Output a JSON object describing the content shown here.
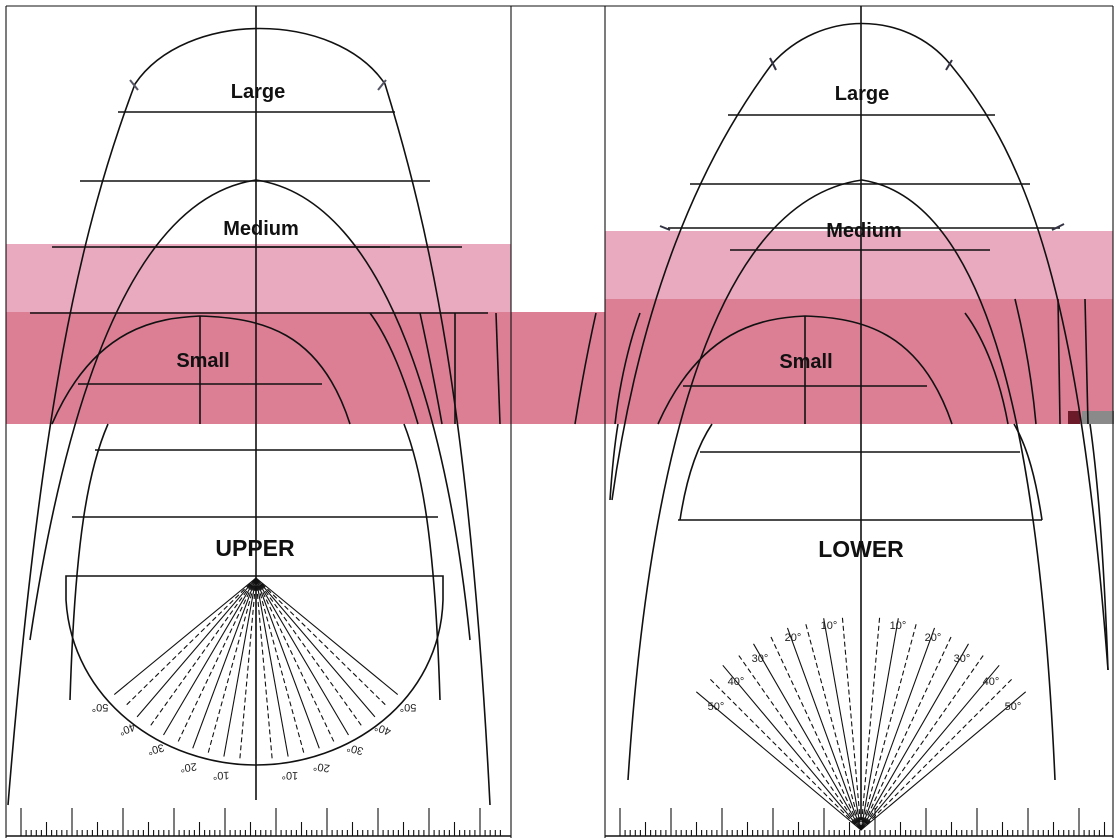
{
  "upper_panel": {
    "size_labels": {
      "large": "Large",
      "medium": "Medium",
      "small": "Small"
    },
    "title": "UPPER",
    "protractor_degrees": [
      "50°",
      "40°",
      "30°",
      "20°",
      "10°",
      "10°",
      "20°",
      "30°",
      "40°",
      "50°"
    ]
  },
  "lower_panel": {
    "size_labels": {
      "large": "Large",
      "medium": "Medium",
      "small": "Small"
    },
    "title": "LOWER",
    "protractor_degrees": [
      "50°",
      "40°",
      "30°",
      "20°",
      "10°",
      "10°",
      "20°",
      "30°",
      "40°",
      "50°"
    ]
  },
  "colors": {
    "highlight_band_light": "#e9a9bf",
    "highlight_band_dark": "#dc7f95",
    "line": "#111111"
  }
}
